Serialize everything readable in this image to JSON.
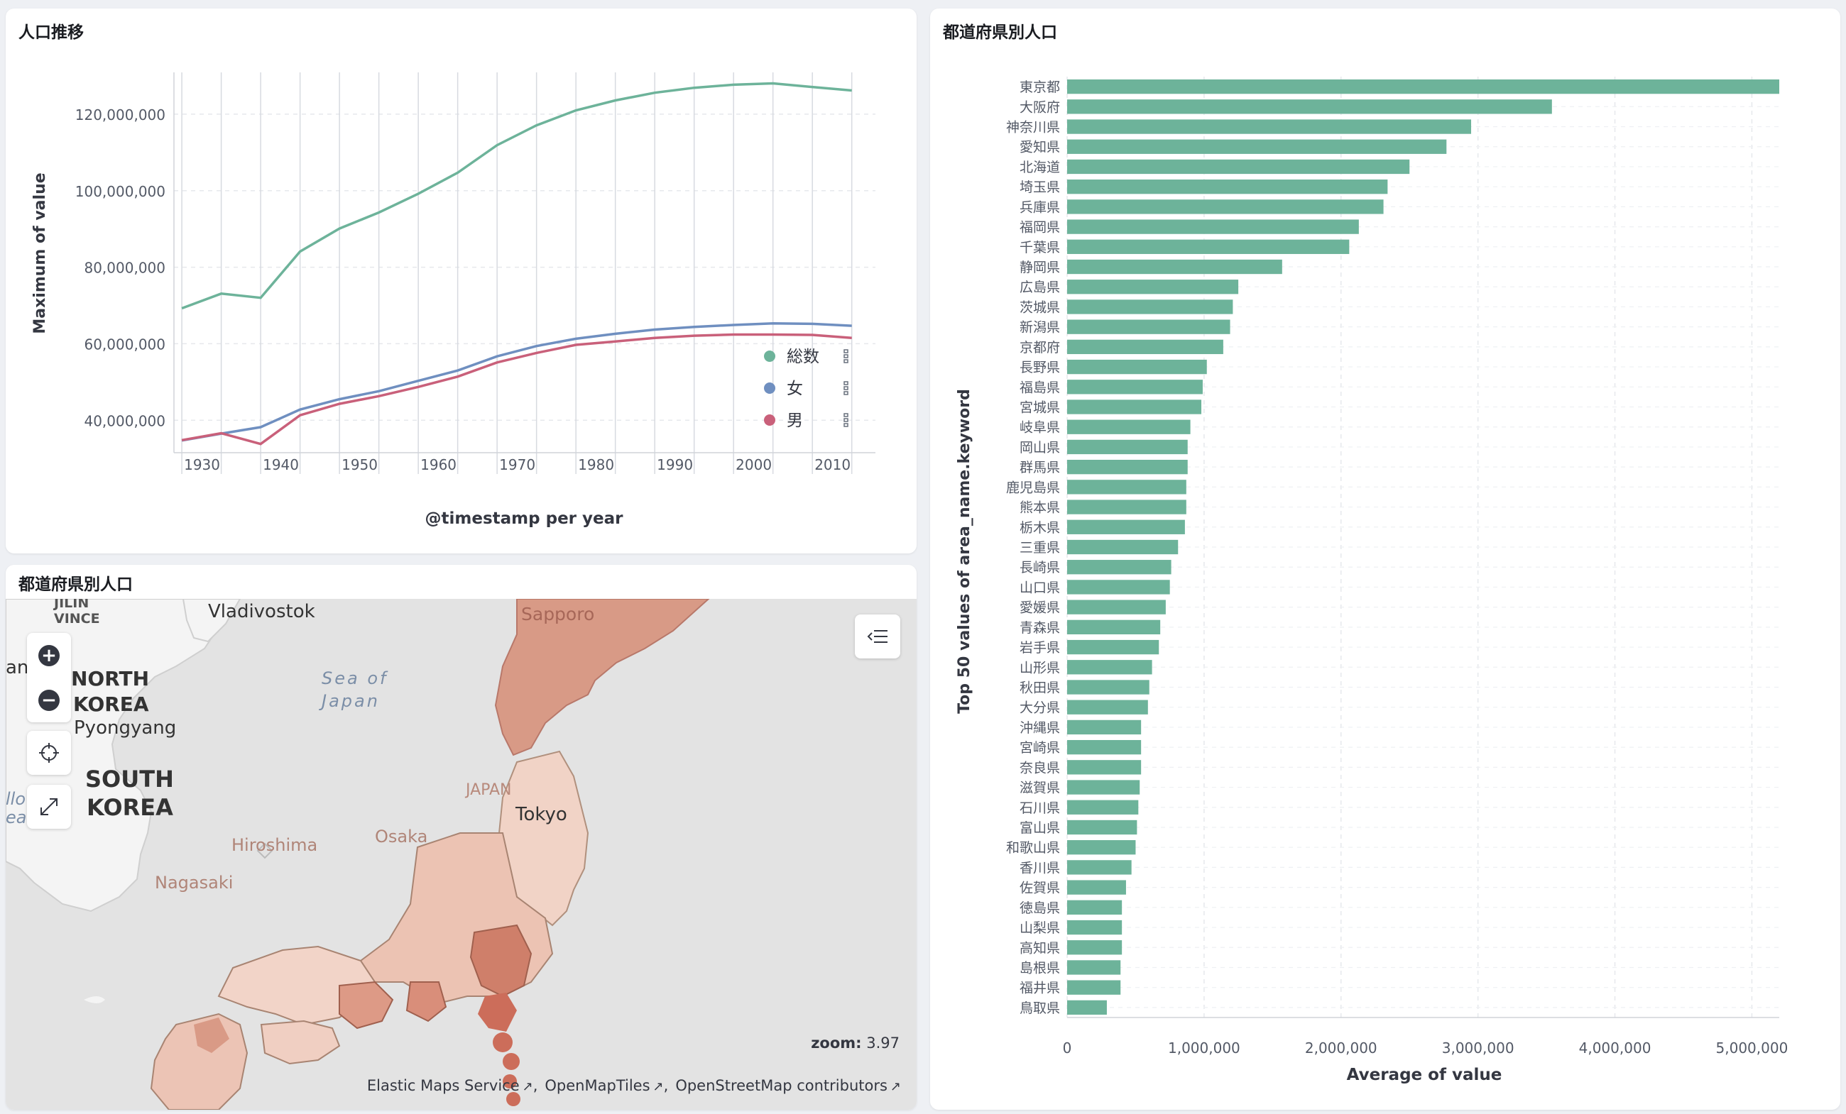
{
  "line_panel": {
    "title": "人口推移",
    "ylabel": "Maximum of value",
    "xlabel": "@timestamp per year",
    "yticks": [
      "120,000,000",
      "100,000,000",
      "80,000,000",
      "60,000,000",
      "40,000,000"
    ],
    "xticks": [
      "1930",
      "1940",
      "1950",
      "1960",
      "1970",
      "1980",
      "1990",
      "2000",
      "2010"
    ]
  },
  "map_panel": {
    "title": "都道府県別人口",
    "labels": {
      "vladivostok": "Vladivostok",
      "jilin": "JILIN",
      "province": "VINCE",
      "sapporo": "Sapporo",
      "north_korea_1": "NORTH",
      "north_korea_2": "KOREA",
      "sea_1": "Sea of",
      "sea_2": "Japan",
      "pyongyang": "Pyongyang",
      "south_korea_1": "SOUTH",
      "south_korea_2": "KOREA",
      "japan": "JAPAN",
      "tokyo": "Tokyo",
      "osaka": "Osaka",
      "hiroshima": "Hiroshima",
      "nagasaki": "Nagasaki",
      "yellow_1": "llow",
      "yellow_2": "ea",
      "an": "an"
    },
    "zoom_label": "zoom:",
    "zoom_value": "3.97",
    "attribution": [
      "Elastic Maps Service",
      "OpenMapTiles",
      "OpenStreetMap contributors"
    ]
  },
  "bar_panel": {
    "title": "都道府県別人口",
    "ylabel": "Top 50 values of area_name.keyword",
    "xlabel": "Average of value",
    "xticks": [
      "0",
      "1,000,000",
      "2,000,000",
      "3,000,000",
      "4,000,000",
      "5,000,000"
    ]
  },
  "colors": {
    "green": "#6db39a",
    "blue": "#6f8fc0",
    "pink": "#c9607a",
    "map_fill": "#e9b9a8",
    "map_dark": "#c8705e"
  },
  "chart_data": [
    {
      "type": "line",
      "title": "人口推移",
      "xlabel": "@timestamp per year",
      "ylabel": "Maximum of value",
      "x": [
        1930,
        1935,
        1940,
        1945,
        1950,
        1955,
        1960,
        1965,
        1970,
        1975,
        1980,
        1985,
        1990,
        1995,
        2000,
        2005,
        2010,
        2015
      ],
      "ylim": [
        33000000,
        130000000
      ],
      "xlim": [
        1929,
        2018
      ],
      "series": [
        {
          "name": "総数",
          "color": "#6db39a",
          "values": [
            69250000,
            73100000,
            71998000,
            84100000,
            90100000,
            94300000,
            99200000,
            104700000,
            111900000,
            117100000,
            121000000,
            123600000,
            125600000,
            126900000,
            127700000,
            128060000,
            127100000,
            126200000
          ]
        },
        {
          "name": "女",
          "color": "#6f8fc0",
          "values": [
            34700000,
            36500000,
            38200000,
            42800000,
            45500000,
            47600000,
            50300000,
            53000000,
            56700000,
            59400000,
            61300000,
            62600000,
            63700000,
            64400000,
            64900000,
            65300000,
            65200000,
            64700000
          ]
        },
        {
          "name": "男",
          "color": "#c9607a",
          "values": [
            34800000,
            36600000,
            33800000,
            41300000,
            44300000,
            46300000,
            48700000,
            51400000,
            55100000,
            57600000,
            59700000,
            60600000,
            61500000,
            62100000,
            62400000,
            62400000,
            62300000,
            61500000
          ]
        }
      ],
      "legend": "right",
      "grid": true
    },
    {
      "type": "bar",
      "orientation": "horizontal",
      "title": "都道府県別人口",
      "xlabel": "Average of value",
      "ylabel": "Top 50 values of area_name.keyword",
      "xlim": [
        0,
        5200000
      ],
      "color": "#6db39a",
      "categories": [
        "東京都",
        "大阪府",
        "神奈川県",
        "愛知県",
        "北海道",
        "埼玉県",
        "兵庫県",
        "福岡県",
        "千葉県",
        "静岡県",
        "広島県",
        "茨城県",
        "新潟県",
        "京都府",
        "長野県",
        "福島県",
        "宮城県",
        "岐阜県",
        "岡山県",
        "群馬県",
        "鹿児島県",
        "熊本県",
        "栃木県",
        "三重県",
        "長崎県",
        "山口県",
        "愛媛県",
        "青森県",
        "岩手県",
        "山形県",
        "秋田県",
        "大分県",
        "沖縄県",
        "宮崎県",
        "奈良県",
        "滋賀県",
        "石川県",
        "富山県",
        "和歌山県",
        "香川県",
        "佐賀県",
        "徳島県",
        "山梨県",
        "高知県",
        "島根県",
        "福井県",
        "鳥取県"
      ],
      "values": [
        5200000,
        3540000,
        2950000,
        2770000,
        2500000,
        2340000,
        2310000,
        2130000,
        2060000,
        1570000,
        1250000,
        1210000,
        1190000,
        1140000,
        1020000,
        990000,
        980000,
        900000,
        880000,
        880000,
        870000,
        870000,
        860000,
        810000,
        760000,
        750000,
        720000,
        680000,
        670000,
        620000,
        600000,
        590000,
        540000,
        540000,
        540000,
        530000,
        520000,
        510000,
        500000,
        470000,
        430000,
        400000,
        400000,
        400000,
        390000,
        390000,
        290000
      ],
      "grid": true
    }
  ]
}
